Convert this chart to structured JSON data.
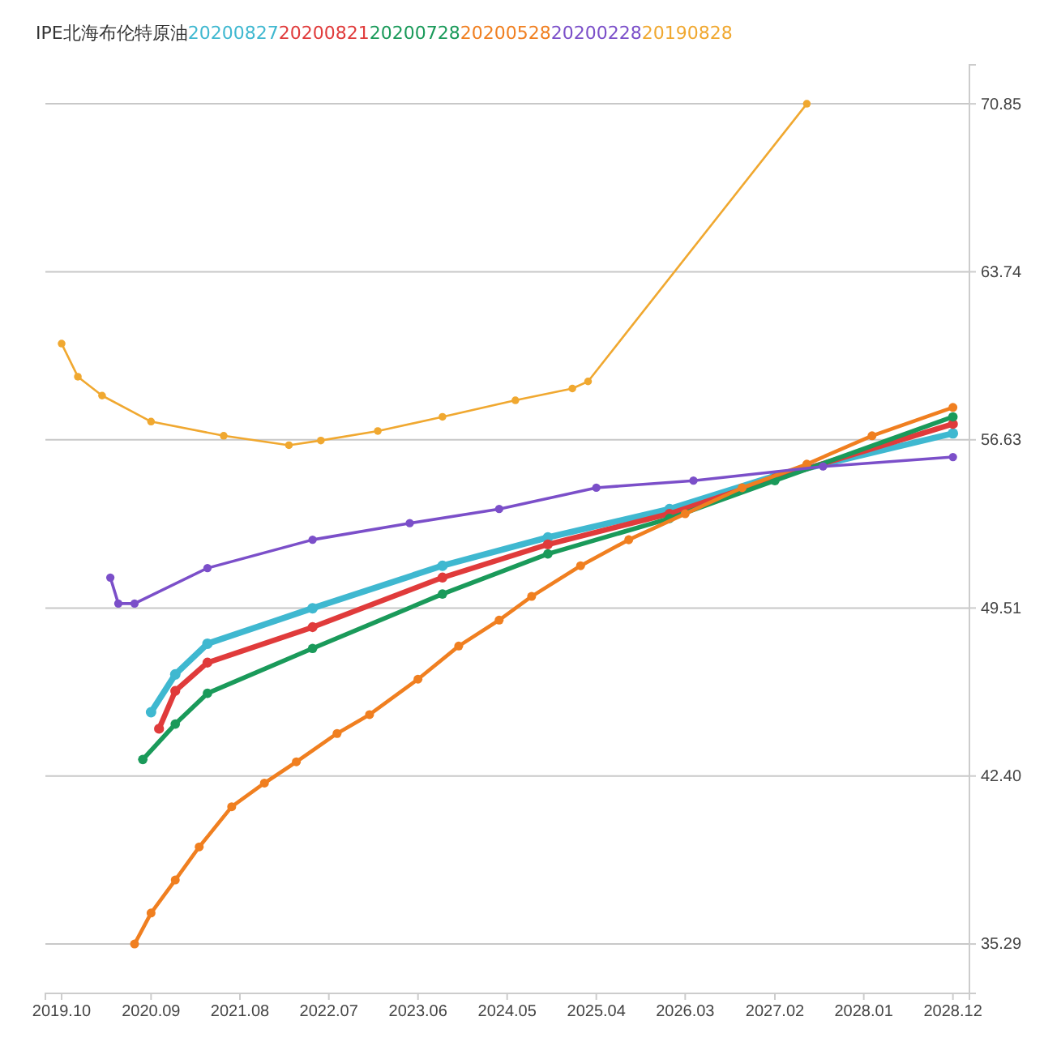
{
  "chart_data": {
    "type": "line",
    "title": "IPE北海布伦特原油",
    "xlim": [
      "2019-08",
      "2029-02"
    ],
    "xticks": [
      {
        "value": "2019-10",
        "label": "2019.10"
      },
      {
        "value": "2020-09",
        "label": "2020.09"
      },
      {
        "value": "2021-08",
        "label": "2021.08"
      },
      {
        "value": "2022-07",
        "label": "2022.07"
      },
      {
        "value": "2023-06",
        "label": "2023.06"
      },
      {
        "value": "2024-05",
        "label": "2024.05"
      },
      {
        "value": "2025-04",
        "label": "2025.04"
      },
      {
        "value": "2026-03",
        "label": "2026.03"
      },
      {
        "value": "2027-02",
        "label": "2027.02"
      },
      {
        "value": "2028-01",
        "label": "2028.01"
      },
      {
        "value": "2028-12",
        "label": "2028.12"
      }
    ],
    "ylim": [
      33.2,
      72.5
    ],
    "yticks": [
      35.29,
      {
        "value": 42.4,
        "label": "42.40"
      },
      49.51,
      56.63,
      63.74,
      70.85
    ],
    "grid": "y",
    "legend": "top left",
    "marker": "circle",
    "line_style": "solid",
    "series": [
      {
        "name": "20200827",
        "color": "#3fb8d0",
        "x": [
          "2020-09",
          "2020-12",
          "2021-04",
          "2022-05",
          "2023-09",
          "2024-10",
          "2026-01",
          "2027-02",
          "2028-12"
        ],
        "values": [
          45.1,
          46.7,
          48.0,
          49.5,
          51.3,
          52.5,
          53.7,
          55.1,
          56.9
        ]
      },
      {
        "name": "20200821",
        "color": "#e03b3b",
        "x": [
          "2020-10",
          "2020-12",
          "2021-04",
          "2022-05",
          "2023-09",
          "2024-10",
          "2026-01",
          "2027-02",
          "2028-12"
        ],
        "values": [
          44.4,
          46.0,
          47.2,
          48.7,
          50.8,
          52.2,
          53.5,
          55.0,
          57.3
        ]
      },
      {
        "name": "20200728",
        "color": "#1a9a5a",
        "x": [
          "2020-08",
          "2020-12",
          "2021-04",
          "2022-05",
          "2023-09",
          "2024-10",
          "2026-01",
          "2027-02",
          "2028-12"
        ],
        "values": [
          43.1,
          44.6,
          45.9,
          47.8,
          50.1,
          51.8,
          53.3,
          54.9,
          57.6
        ]
      },
      {
        "name": "20200528",
        "color": "#f07f20",
        "x": [
          "2020-07",
          "2020-09",
          "2020-12",
          "2021-03",
          "2021-07",
          "2021-11",
          "2022-03",
          "2022-08",
          "2022-12",
          "2023-06",
          "2023-11",
          "2024-04",
          "2024-08",
          "2025-02",
          "2025-08",
          "2026-03",
          "2026-10",
          "2027-06",
          "2028-02",
          "2028-12"
        ],
        "values": [
          35.29,
          36.6,
          38.0,
          39.4,
          41.1,
          42.1,
          43.0,
          44.2,
          45.0,
          46.5,
          47.9,
          49.0,
          50.0,
          51.3,
          52.4,
          53.5,
          54.6,
          55.6,
          56.8,
          58.0
        ]
      },
      {
        "name": "20200228",
        "color": "#7b4fc9",
        "x": [
          "2020-04",
          "2020-05",
          "2020-07",
          "2021-04",
          "2022-05",
          "2023-05",
          "2024-04",
          "2025-04",
          "2026-04",
          "2027-08",
          "2028-12"
        ],
        "values": [
          50.8,
          49.7,
          49.7,
          51.2,
          52.4,
          53.1,
          53.7,
          54.6,
          54.9,
          55.5,
          55.9
        ]
      },
      {
        "name": "20190828",
        "color": "#f0a830",
        "x": [
          "2019-10",
          "2019-12",
          "2020-03",
          "2020-09",
          "2021-06",
          "2022-02",
          "2022-06",
          "2023-01",
          "2023-09",
          "2024-06",
          "2025-01",
          "2025-03",
          "2027-06"
        ],
        "values": [
          60.7,
          59.3,
          58.5,
          57.4,
          56.8,
          56.4,
          56.6,
          57.0,
          57.6,
          58.3,
          58.8,
          59.1,
          70.85
        ]
      }
    ]
  }
}
